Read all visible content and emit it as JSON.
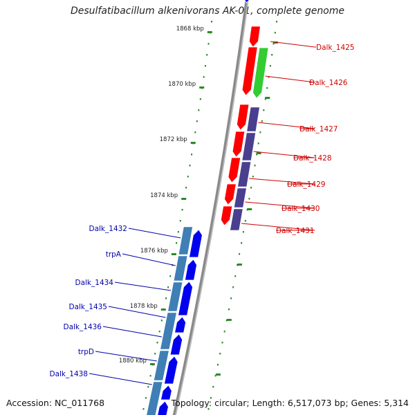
{
  "title": "Desulfatibacillum alkenivorans AK-01, complete genome",
  "accession": "Accession: NC_011768",
  "topology": "Topology: circular; Length: 6,517,073 bp; Genes: 5,314",
  "colors": {
    "backbone": "#8a8a8a",
    "tick": "#2a8a2a",
    "forward_gene": "#ff0000",
    "reverse_gene": "#0000ee",
    "rna_gene": "#33cc33",
    "cds_forward": "#4a3f8f",
    "cds_reverse": "#3f7fb5",
    "label_right": "#cc0000",
    "label_left": "#0000aa",
    "kbp_label": "#222222"
  },
  "kbp_labels": [
    "1868 kbp",
    "1870 kbp",
    "1872 kbp",
    "1874 kbp",
    "1876 kbp",
    "1878 kbp",
    "1880 kbp"
  ],
  "right_labels": [
    "Dalk_1425",
    "Dalk_1426",
    "Dalk_1427",
    "Dalk_1428",
    "Dalk_1429",
    "Dalk_1430",
    "Dalk_1431"
  ],
  "left_labels": [
    "Dalk_1432",
    "trpA",
    "Dalk_1434",
    "Dalk_1435",
    "Dalk_1436",
    "trpD",
    "Dalk_1438"
  ]
}
